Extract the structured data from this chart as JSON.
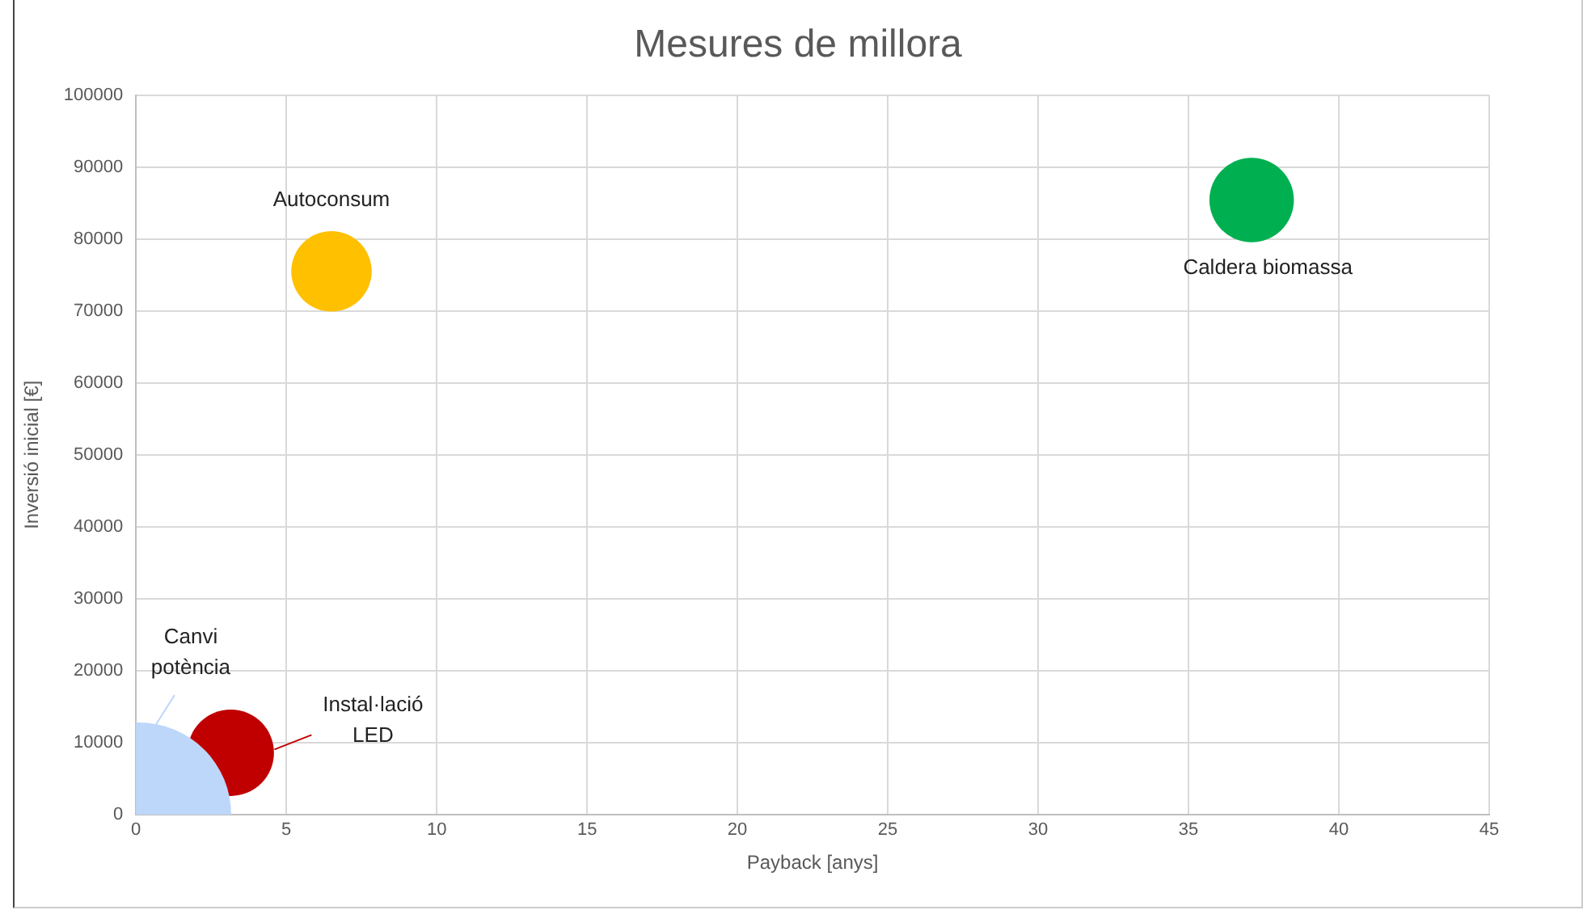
{
  "chart_data": {
    "type": "bubble",
    "title": "Mesures de millora",
    "xlabel": "Payback [anys]",
    "ylabel": "Inversió inicial [€]",
    "xlim": [
      0,
      45
    ],
    "xticks": [
      0,
      5,
      10,
      15,
      20,
      25,
      30,
      35,
      40,
      45
    ],
    "ylim": [
      0,
      100000
    ],
    "yticks": [
      0,
      10000,
      20000,
      30000,
      40000,
      50000,
      60000,
      70000,
      80000,
      90000,
      100000
    ],
    "grid": true,
    "legend": false,
    "series": [
      {
        "name": "Canvi potència",
        "color": "#bdd7fb",
        "x": [
          0.1
        ],
        "values": [
          0
        ],
        "sizes": [
          1
        ]
      },
      {
        "name": "Instal·lació LED",
        "color": "#c00000",
        "x": [
          3.15
        ],
        "values": [
          8600
        ],
        "sizes": [
          0.22
        ]
      },
      {
        "name": "Autoconsum",
        "color": "#ffc000",
        "x": [
          6.5
        ],
        "values": [
          75500
        ],
        "sizes": [
          0.19
        ]
      },
      {
        "name": "Caldera biomassa",
        "color": "#00b050",
        "x": [
          37.1
        ],
        "values": [
          85400
        ],
        "sizes": [
          0.21
        ]
      }
    ]
  }
}
